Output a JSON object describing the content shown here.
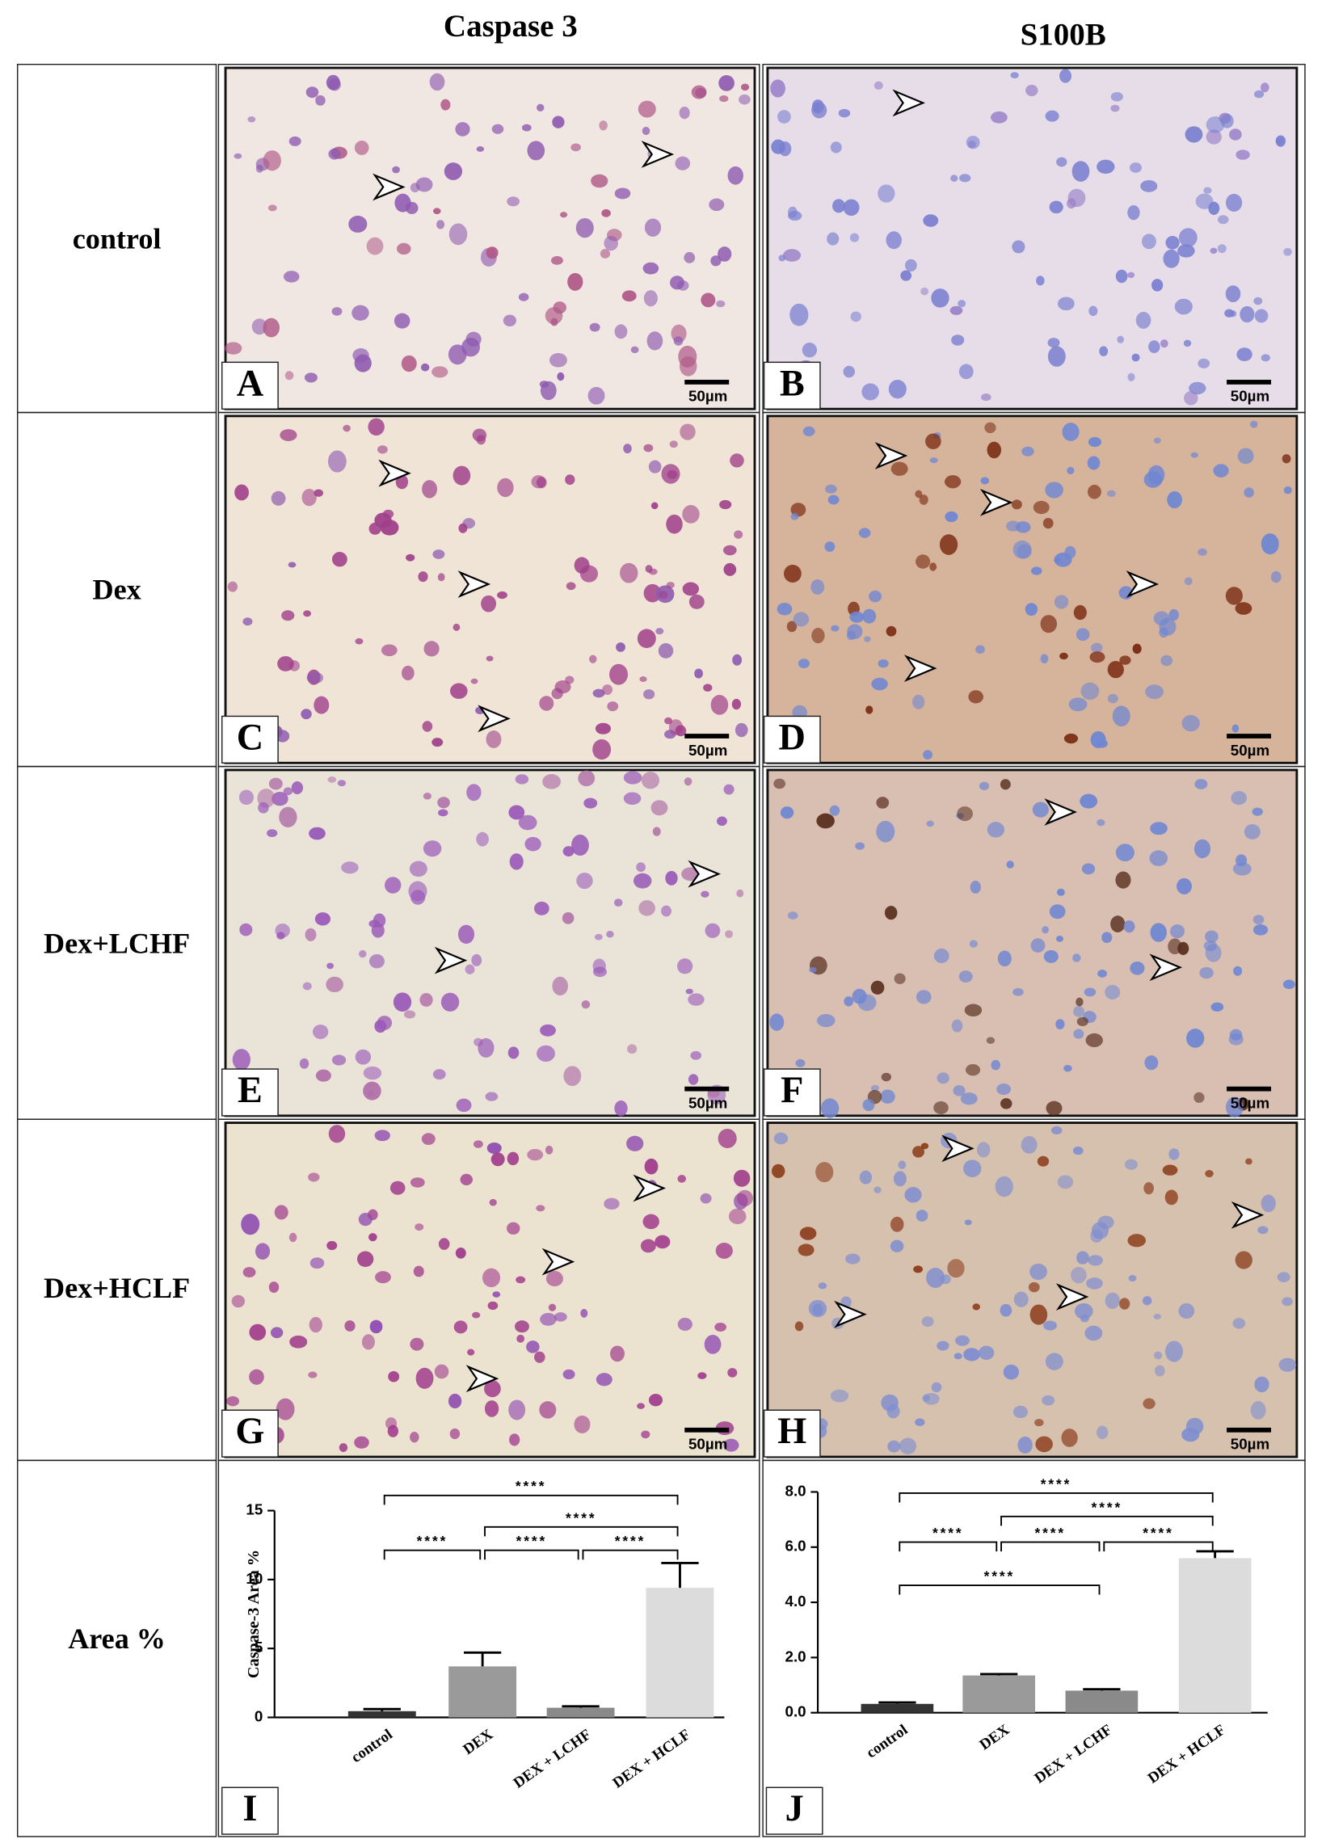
{
  "columns": [
    "Caspase 3",
    "S100B"
  ],
  "rows": [
    "control",
    "Dex",
    "Dex+LCHF",
    "Dex+HCLF",
    "Area %"
  ],
  "panels": [
    {
      "letter": "A",
      "scale_bar": "50µm"
    },
    {
      "letter": "B",
      "scale_bar": "50µm"
    },
    {
      "letter": "C",
      "scale_bar": "50µm"
    },
    {
      "letter": "D",
      "scale_bar": "50µm"
    },
    {
      "letter": "E",
      "scale_bar": "50µm"
    },
    {
      "letter": "F",
      "scale_bar": "50µm"
    },
    {
      "letter": "G",
      "scale_bar": "50µm"
    },
    {
      "letter": "H",
      "scale_bar": "50µm"
    }
  ],
  "chart_panels": [
    "I",
    "J"
  ],
  "chart_data": [
    {
      "type": "bar",
      "y_label": "Caspase-3 Area %",
      "categories": [
        "control",
        "DEX",
        "DEX + LCHF",
        "DEX + HCLF"
      ],
      "values": [
        0.45,
        3.7,
        0.7,
        9.4
      ],
      "errors": [
        0.15,
        1.0,
        0.1,
        1.8
      ],
      "colors": [
        "#333333",
        "#9a9a9a",
        "#8a8a8a",
        "#dcdcdc"
      ],
      "ylim": [
        0,
        15
      ],
      "yticks": [
        0,
        5,
        10,
        15
      ],
      "significance": [
        "****",
        "****",
        "****",
        "****",
        "****"
      ]
    },
    {
      "type": "bar",
      "categories": [
        "control",
        "DEX",
        "DEX + LCHF",
        "DEX + HCLF"
      ],
      "values": [
        0.32,
        1.35,
        0.8,
        5.6
      ],
      "errors": [
        0.05,
        0.05,
        0.05,
        0.25
      ],
      "colors": [
        "#333333",
        "#9a9a9a",
        "#8a8a8a",
        "#dcdcdc"
      ],
      "ylim": [
        0,
        8
      ],
      "yticks": [
        {
          "value": 0,
          "label": "0.0"
        },
        {
          "value": 2,
          "label": "2.0"
        },
        {
          "value": 4,
          "label": "4.0"
        },
        {
          "value": 6,
          "label": "6.0"
        },
        {
          "value": 8,
          "label": "8.0"
        }
      ],
      "significance": [
        "****",
        "****",
        "****",
        "****",
        "****",
        "****"
      ]
    }
  ]
}
